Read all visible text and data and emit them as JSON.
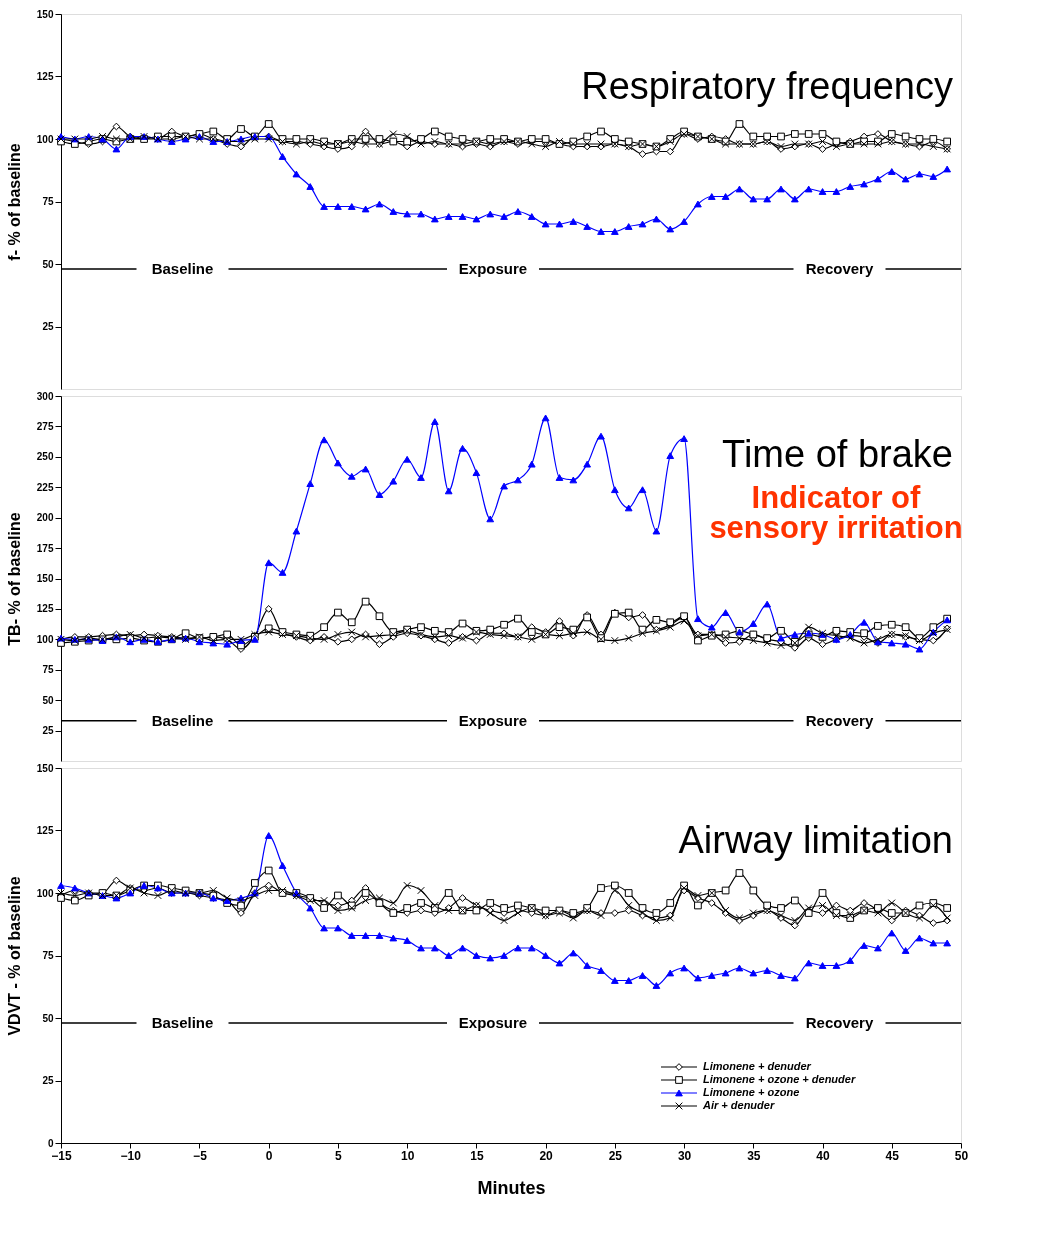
{
  "chart_data": [
    {
      "type": "line",
      "title": "Respiratory frequency",
      "ylabel": "f- % of baseline",
      "xlim": [
        -15,
        50
      ],
      "xticks": [
        -15,
        -10,
        -5,
        0,
        5,
        10,
        15,
        20,
        25,
        30,
        35,
        40,
        45,
        50
      ],
      "ylim": [
        0,
        150
      ],
      "yticks": [
        25,
        50,
        75,
        100,
        125,
        150
      ],
      "tick_labels": "y",
      "grid": false,
      "legend": false,
      "x": [
        -15,
        -14,
        -13,
        -12,
        -11,
        -10,
        -9,
        -8,
        -7,
        -6,
        -5,
        -4,
        -3,
        -2,
        -1,
        0,
        1,
        2,
        3,
        4,
        5,
        6,
        7,
        8,
        9,
        10,
        11,
        12,
        13,
        14,
        15,
        16,
        17,
        18,
        19,
        20,
        21,
        22,
        23,
        24,
        25,
        26,
        27,
        28,
        29,
        30,
        31,
        32,
        33,
        34,
        35,
        36,
        37,
        38,
        39,
        40,
        41,
        42,
        43,
        44,
        45,
        46,
        47,
        48,
        49
      ],
      "series": [
        {
          "color": "#000000",
          "marker": "diamond",
          "values": [
            100,
            99,
            98,
            99,
            105,
            101,
            100,
            100,
            103,
            101,
            102,
            100,
            98,
            97,
            101,
            101,
            99,
            99,
            98,
            97,
            96,
            97,
            103,
            98,
            99,
            97,
            99,
            98,
            98,
            97,
            98,
            97,
            99,
            98,
            99,
            99,
            98,
            97,
            97,
            97,
            98,
            97,
            94,
            95,
            95,
            102,
            100,
            101,
            100,
            98,
            98,
            99,
            96,
            97,
            98,
            96,
            98,
            99,
            101,
            102,
            99,
            98,
            97,
            99,
            96
          ]
        },
        {
          "color": "#000000",
          "marker": "square",
          "values": [
            99,
            98,
            99,
            100,
            99,
            100,
            100,
            101,
            101,
            101,
            102,
            103,
            100,
            104,
            101,
            106,
            100,
            100,
            100,
            99,
            98,
            100,
            100,
            100,
            99,
            99,
            100,
            103,
            101,
            100,
            99,
            100,
            100,
            99,
            100,
            100,
            98,
            99,
            101,
            103,
            100,
            99,
            98,
            97,
            100,
            103,
            101,
            100,
            99,
            106,
            101,
            101,
            101,
            102,
            102,
            102,
            99,
            98,
            99,
            99,
            102,
            101,
            100,
            100,
            99
          ]
        },
        {
          "color": "#0000ff",
          "marker": "triangle",
          "values": [
            101,
            100,
            101,
            100,
            96,
            101,
            101,
            100,
            99,
            100,
            101,
            99,
            99,
            100,
            101,
            101,
            93,
            86,
            81,
            73,
            73,
            73,
            72,
            74,
            71,
            70,
            70,
            68,
            69,
            69,
            68,
            70,
            69,
            71,
            69,
            66,
            66,
            67,
            65,
            63,
            63,
            65,
            66,
            68,
            64,
            67,
            74,
            77,
            77,
            80,
            76,
            76,
            80,
            76,
            80,
            79,
            79,
            81,
            82,
            84,
            87,
            84,
            86,
            85,
            88
          ]
        },
        {
          "color": "#000000",
          "marker": "cross",
          "values": [
            100,
            100,
            100,
            101,
            100,
            100,
            101,
            100,
            100,
            101,
            100,
            100,
            99,
            99,
            100,
            100,
            99,
            98,
            99,
            98,
            98,
            99,
            98,
            98,
            102,
            101,
            98,
            99,
            98,
            98,
            99,
            98,
            99,
            99,
            98,
            97,
            99,
            98,
            98,
            98,
            98,
            97,
            98,
            97,
            99,
            102,
            101,
            100,
            98,
            98,
            98,
            99,
            97,
            98,
            98,
            99,
            97,
            98,
            98,
            98,
            99,
            98,
            98,
            97,
            96
          ]
        }
      ],
      "ref_lines": [
        {
          "axis": "y",
          "value": 48,
          "color": "#000000"
        }
      ],
      "annotations": [
        "Baseline",
        "Exposure",
        "Recovery"
      ]
    },
    {
      "type": "line",
      "title": "Time of brake",
      "subtitle": "Indicator of sensory irritation",
      "ylabel": "TB- % of baseline",
      "xlim": [
        -15,
        50
      ],
      "xticks": [
        -15,
        -10,
        -5,
        0,
        5,
        10,
        15,
        20,
        25,
        30,
        35,
        40,
        45,
        50
      ],
      "ylim": [
        0,
        300
      ],
      "yticks": [
        25,
        50,
        75,
        100,
        125,
        150,
        175,
        200,
        225,
        250,
        275,
        300
      ],
      "tick_labels": "y",
      "grid": false,
      "legend": false,
      "x": [
        -15,
        -14,
        -13,
        -12,
        -11,
        -10,
        -9,
        -8,
        -7,
        -6,
        -5,
        -4,
        -3,
        -2,
        -1,
        0,
        1,
        2,
        3,
        4,
        5,
        6,
        7,
        8,
        9,
        10,
        11,
        12,
        13,
        14,
        15,
        16,
        17,
        18,
        19,
        20,
        21,
        22,
        23,
        24,
        25,
        26,
        27,
        28,
        29,
        30,
        31,
        32,
        33,
        34,
        35,
        36,
        37,
        38,
        39,
        40,
        41,
        42,
        43,
        44,
        45,
        46,
        47,
        48,
        49
      ],
      "series": [
        {
          "color": "#000000",
          "marker": "diamond",
          "values": [
            100,
            102,
            102,
            103,
            104,
            103,
            104,
            103,
            102,
            101,
            101,
            102,
            100,
            92,
            103,
            125,
            105,
            102,
            99,
            102,
            98,
            100,
            104,
            96,
            102,
            105,
            103,
            100,
            97,
            102,
            99,
            105,
            105,
            102,
            110,
            106,
            115,
            103,
            120,
            104,
            122,
            118,
            120,
            108,
            112,
            118,
            104,
            104,
            97,
            98,
            104,
            100,
            98,
            93,
            101,
            96,
            100,
            103,
            102,
            97,
            104,
            102,
            100,
            99,
            109
          ]
        },
        {
          "color": "#000000",
          "marker": "square",
          "values": [
            97,
            98,
            99,
            100,
            100,
            101,
            99,
            98,
            100,
            105,
            101,
            102,
            104,
            95,
            102,
            109,
            106,
            104,
            103,
            110,
            122,
            114,
            131,
            119,
            106,
            108,
            110,
            107,
            106,
            113,
            107,
            108,
            112,
            117,
            106,
            104,
            110,
            108,
            118,
            101,
            121,
            122,
            108,
            116,
            114,
            119,
            99,
            103,
            104,
            107,
            104,
            101,
            107,
            98,
            104,
            102,
            107,
            106,
            105,
            111,
            112,
            110,
            101,
            110,
            117
          ]
        },
        {
          "color": "#0000ff",
          "marker": "triangle",
          "values": [
            101,
            100,
            100,
            99,
            102,
            98,
            100,
            98,
            100,
            101,
            98,
            97,
            96,
            99,
            100,
            163,
            155,
            189,
            228,
            264,
            245,
            234,
            240,
            219,
            230,
            248,
            233,
            279,
            222,
            257,
            237,
            199,
            226,
            231,
            244,
            282,
            233,
            231,
            244,
            267,
            223,
            208,
            223,
            189,
            251,
            265,
            117,
            110,
            122,
            106,
            113,
            129,
            101,
            104,
            105,
            104,
            100,
            104,
            114,
            98,
            97,
            96,
            92,
            106,
            116
          ]
        },
        {
          "color": "#000000",
          "marker": "cross",
          "values": [
            100,
            99,
            101,
            100,
            102,
            104,
            101,
            102,
            101,
            100,
            102,
            99,
            100,
            100,
            104,
            106,
            104,
            103,
            101,
            100,
            104,
            106,
            102,
            103,
            104,
            107,
            104,
            102,
            103,
            101,
            106,
            104,
            103,
            102,
            100,
            104,
            103,
            105,
            106,
            100,
            99,
            101,
            105,
            107,
            110,
            115,
            103,
            104,
            102,
            101,
            99,
            97,
            95,
            97,
            110,
            105,
            103,
            101,
            97,
            100,
            104,
            103,
            99,
            105,
            108
          ]
        }
      ],
      "ref_lines": [
        {
          "axis": "y",
          "value": 33,
          "color": "#000000"
        }
      ],
      "annotations": [
        "Baseline",
        "Exposure",
        "Recovery"
      ]
    },
    {
      "type": "line",
      "title": "Airway limitation",
      "ylabel": "VDVT - % of baseline",
      "xlabel": "Minutes",
      "xlim": [
        -15,
        50
      ],
      "xticks": [
        -15,
        -10,
        -5,
        0,
        5,
        10,
        15,
        20,
        25,
        30,
        35,
        40,
        45,
        50
      ],
      "ylim": [
        0,
        150
      ],
      "yticks": [
        0,
        25,
        50,
        75,
        100,
        125,
        150
      ],
      "grid": false,
      "legend": "bottom right",
      "x": [
        -15,
        -14,
        -13,
        -12,
        -11,
        -10,
        -9,
        -8,
        -7,
        -6,
        -5,
        -4,
        -3,
        -2,
        -1,
        0,
        1,
        2,
        3,
        4,
        5,
        6,
        7,
        8,
        9,
        10,
        11,
        12,
        13,
        14,
        15,
        16,
        17,
        18,
        19,
        20,
        21,
        22,
        23,
        24,
        25,
        26,
        27,
        28,
        29,
        30,
        31,
        32,
        33,
        34,
        35,
        36,
        37,
        38,
        39,
        40,
        41,
        42,
        43,
        44,
        45,
        46,
        47,
        48,
        49
      ],
      "series": [
        {
          "name": "Limonene + denuder",
          "color": "#000000",
          "marker": "diamond",
          "values": [
            99,
            101,
            100,
            100,
            105,
            102,
            101,
            102,
            100,
            100,
            99,
            98,
            97,
            92,
            100,
            103,
            100,
            99,
            98,
            96,
            95,
            97,
            102,
            96,
            93,
            92,
            93,
            92,
            94,
            98,
            95,
            93,
            92,
            93,
            92,
            91,
            93,
            91,
            93,
            92,
            92,
            93,
            91,
            90,
            91,
            101,
            98,
            96,
            92,
            89,
            91,
            93,
            90,
            87,
            93,
            92,
            95,
            93,
            96,
            93,
            89,
            93,
            91,
            88,
            89
          ]
        },
        {
          "name": "Limonene + ozone + denuder",
          "color": "#000000",
          "marker": "square",
          "values": [
            98,
            97,
            99,
            100,
            99,
            101,
            103,
            103,
            102,
            101,
            100,
            99,
            96,
            95,
            104,
            109,
            100,
            100,
            98,
            94,
            99,
            95,
            100,
            96,
            92,
            94,
            96,
            94,
            100,
            93,
            93,
            96,
            94,
            95,
            94,
            93,
            93,
            92,
            94,
            102,
            103,
            100,
            94,
            92,
            96,
            103,
            95,
            100,
            101,
            108,
            101,
            95,
            94,
            97,
            92,
            100,
            92,
            90,
            93,
            94,
            92,
            92,
            95,
            96,
            94
          ]
        },
        {
          "name": "Limonene + ozone",
          "color": "#0000ff",
          "marker": "triangle",
          "values": [
            103,
            102,
            100,
            99,
            98,
            100,
            103,
            102,
            100,
            100,
            100,
            98,
            97,
            98,
            100,
            123,
            111,
            100,
            94,
            86,
            86,
            83,
            83,
            83,
            82,
            81,
            78,
            78,
            75,
            78,
            75,
            74,
            75,
            78,
            78,
            75,
            72,
            76,
            71,
            69,
            65,
            65,
            67,
            63,
            68,
            70,
            66,
            67,
            68,
            70,
            68,
            69,
            67,
            66,
            72,
            71,
            71,
            73,
            79,
            78,
            84,
            77,
            82,
            80,
            80
          ]
        },
        {
          "name": "Air + denuder",
          "color": "#000000",
          "marker": "cross",
          "values": [
            100,
            99,
            100,
            99,
            99,
            102,
            100,
            99,
            101,
            100,
            100,
            101,
            98,
            97,
            99,
            101,
            101,
            99,
            97,
            97,
            93,
            94,
            97,
            98,
            96,
            103,
            101,
            95,
            93,
            93,
            95,
            92,
            89,
            92,
            94,
            91,
            92,
            90,
            93,
            91,
            101,
            95,
            92,
            89,
            90,
            102,
            99,
            100,
            93,
            90,
            92,
            93,
            91,
            89,
            94,
            95,
            91,
            91,
            93,
            92,
            96,
            92,
            90,
            95,
            90
          ]
        }
      ],
      "ref_lines": [
        {
          "axis": "y",
          "value": 48,
          "color": "#000000"
        }
      ],
      "annotations": [
        "Baseline",
        "Exposure",
        "Recovery"
      ]
    }
  ]
}
